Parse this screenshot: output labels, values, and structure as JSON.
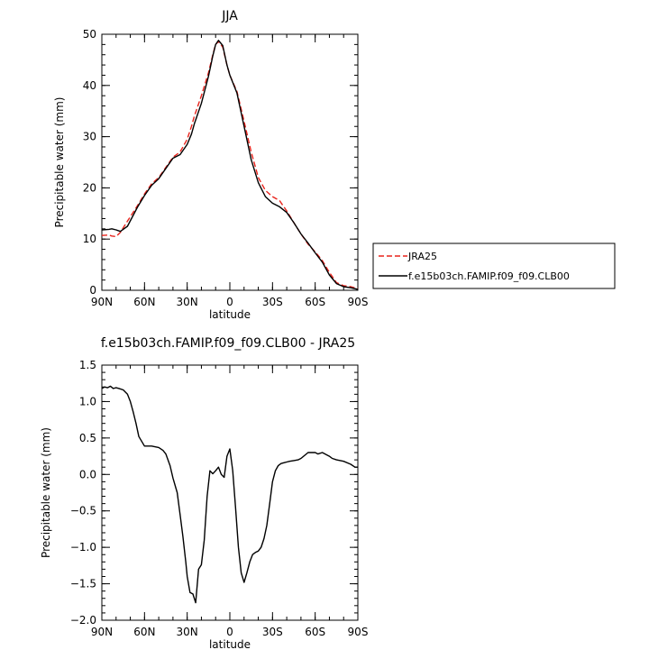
{
  "chart_data": [
    {
      "type": "line",
      "title": "JJA",
      "xlabel": "latitude",
      "ylabel": "Precipitable water (mm)",
      "xlim": [
        90,
        -90
      ],
      "ylim": [
        0,
        50
      ],
      "xticks": [
        {
          "value": 90,
          "label": "90N"
        },
        {
          "value": 60,
          "label": "60N"
        },
        {
          "value": 30,
          "label": "30N"
        },
        {
          "value": 0,
          "label": "0"
        },
        {
          "value": -30,
          "label": "30S"
        },
        {
          "value": -60,
          "label": "60S"
        },
        {
          "value": -90,
          "label": "90S"
        }
      ],
      "yticks": [
        {
          "value": 0,
          "label": "0"
        },
        {
          "value": 10,
          "label": "10"
        },
        {
          "value": 20,
          "label": "20"
        },
        {
          "value": 30,
          "label": "30"
        },
        {
          "value": 40,
          "label": "40"
        },
        {
          "value": 50,
          "label": "50"
        }
      ],
      "legend": {
        "placement": "right"
      },
      "series": [
        {
          "name": "JRA25",
          "color": "#e8231c",
          "dash": true,
          "x": [
            90,
            85,
            83,
            80,
            77,
            72,
            65,
            60,
            55,
            50,
            45,
            40,
            35,
            30,
            27,
            25,
            20,
            15,
            12,
            10,
            8,
            5,
            2,
            0,
            -5,
            -10,
            -15,
            -20,
            -25,
            -30,
            -35,
            -40,
            -45,
            -50,
            -55,
            -60,
            -65,
            -70,
            -75,
            -80,
            -85,
            -90
          ],
          "y": [
            10.7,
            10.8,
            10.6,
            10.5,
            11.3,
            13.5,
            16.5,
            18.8,
            20.8,
            22.0,
            24.0,
            26.0,
            27.0,
            29.5,
            32.0,
            34.0,
            38.0,
            42.5,
            46.0,
            48.0,
            48.6,
            47.5,
            44.0,
            42.0,
            38.8,
            33.0,
            27.0,
            22.0,
            19.5,
            18.3,
            17.5,
            15.5,
            13.2,
            11.0,
            9.0,
            7.5,
            5.8,
            3.5,
            1.5,
            0.9,
            0.7,
            0.3
          ]
        },
        {
          "name": "f.e15b03ch.FAMIP.f09_f09.CLB00",
          "color": "#000000",
          "dash": false,
          "x": [
            90,
            85,
            83,
            80,
            77,
            72,
            65,
            60,
            55,
            50,
            45,
            40,
            35,
            30,
            27,
            25,
            20,
            15,
            12,
            10,
            8,
            5,
            2,
            0,
            -5,
            -10,
            -15,
            -20,
            -25,
            -30,
            -35,
            -40,
            -45,
            -50,
            -55,
            -60,
            -65,
            -70,
            -75,
            -80,
            -85,
            -90
          ],
          "y": [
            11.8,
            11.9,
            12.0,
            11.8,
            11.5,
            12.5,
            16.2,
            18.5,
            20.5,
            21.8,
            23.8,
            25.8,
            26.5,
            28.5,
            30.5,
            32.5,
            36.5,
            41.8,
            45.8,
            48.0,
            48.8,
            47.8,
            44.0,
            42.0,
            38.5,
            32.0,
            25.5,
            21.0,
            18.3,
            17.0,
            16.3,
            15.2,
            13.2,
            11.0,
            9.2,
            7.3,
            5.5,
            3.0,
            1.3,
            0.7,
            0.5,
            0.2
          ]
        }
      ]
    },
    {
      "type": "line",
      "title": "f.e15b03ch.FAMIP.f09_f09.CLB00 - JRA25",
      "xlabel": "latitude",
      "ylabel": "Precipitable water (mm)",
      "xlim": [
        90,
        -90
      ],
      "ylim": [
        -2.0,
        1.5
      ],
      "xticks": [
        {
          "value": 90,
          "label": "90N"
        },
        {
          "value": 60,
          "label": "60N"
        },
        {
          "value": 30,
          "label": "30N"
        },
        {
          "value": 0,
          "label": "0"
        },
        {
          "value": -30,
          "label": "30S"
        },
        {
          "value": -60,
          "label": "60S"
        },
        {
          "value": -90,
          "label": "90S"
        }
      ],
      "yticks": [
        {
          "value": -2.0,
          "label": "−2.0"
        },
        {
          "value": -1.5,
          "label": "−1.5"
        },
        {
          "value": -1.0,
          "label": "−1.0"
        },
        {
          "value": -0.5,
          "label": "−0.5"
        },
        {
          "value": 0.0,
          "label": "0.0"
        },
        {
          "value": 0.5,
          "label": "0.5"
        },
        {
          "value": 1.0,
          "label": "1.0"
        },
        {
          "value": 1.5,
          "label": "1.5"
        }
      ],
      "series": [
        {
          "color": "#000000",
          "x": [
            90,
            88,
            86,
            84,
            82,
            80,
            78,
            75,
            72,
            70,
            68,
            66,
            64,
            60,
            55,
            50,
            47,
            45,
            42,
            40,
            37,
            35,
            33,
            31,
            30,
            28,
            26,
            24,
            22,
            20,
            18,
            16,
            14,
            12,
            10,
            8,
            6,
            4,
            2,
            0,
            -2,
            -4,
            -6,
            -8,
            -10,
            -12,
            -14,
            -16,
            -18,
            -20,
            -22,
            -24,
            -26,
            -28,
            -30,
            -32,
            -34,
            -36,
            -38,
            -40,
            -42,
            -45,
            -48,
            -50,
            -55,
            -60,
            -62,
            -65,
            -68,
            -70,
            -72,
            -75,
            -80,
            -85,
            -88,
            -90
          ],
          "y": [
            1.18,
            1.2,
            1.19,
            1.21,
            1.18,
            1.19,
            1.18,
            1.16,
            1.1,
            1.0,
            0.86,
            0.7,
            0.52,
            0.39,
            0.39,
            0.37,
            0.33,
            0.28,
            0.12,
            -0.05,
            -0.25,
            -0.55,
            -0.85,
            -1.2,
            -1.4,
            -1.62,
            -1.64,
            -1.76,
            -1.3,
            -1.24,
            -0.9,
            -0.3,
            0.05,
            0.01,
            0.05,
            0.1,
            0.0,
            -0.04,
            0.25,
            0.35,
            0.05,
            -0.45,
            -1.0,
            -1.35,
            -1.48,
            -1.35,
            -1.2,
            -1.1,
            -1.07,
            -1.05,
            -1.0,
            -0.88,
            -0.7,
            -0.4,
            -0.1,
            0.05,
            0.12,
            0.15,
            0.16,
            0.17,
            0.18,
            0.19,
            0.2,
            0.22,
            0.3,
            0.3,
            0.28,
            0.3,
            0.27,
            0.25,
            0.22,
            0.2,
            0.18,
            0.14,
            0.1,
            0.1
          ]
        }
      ]
    }
  ]
}
